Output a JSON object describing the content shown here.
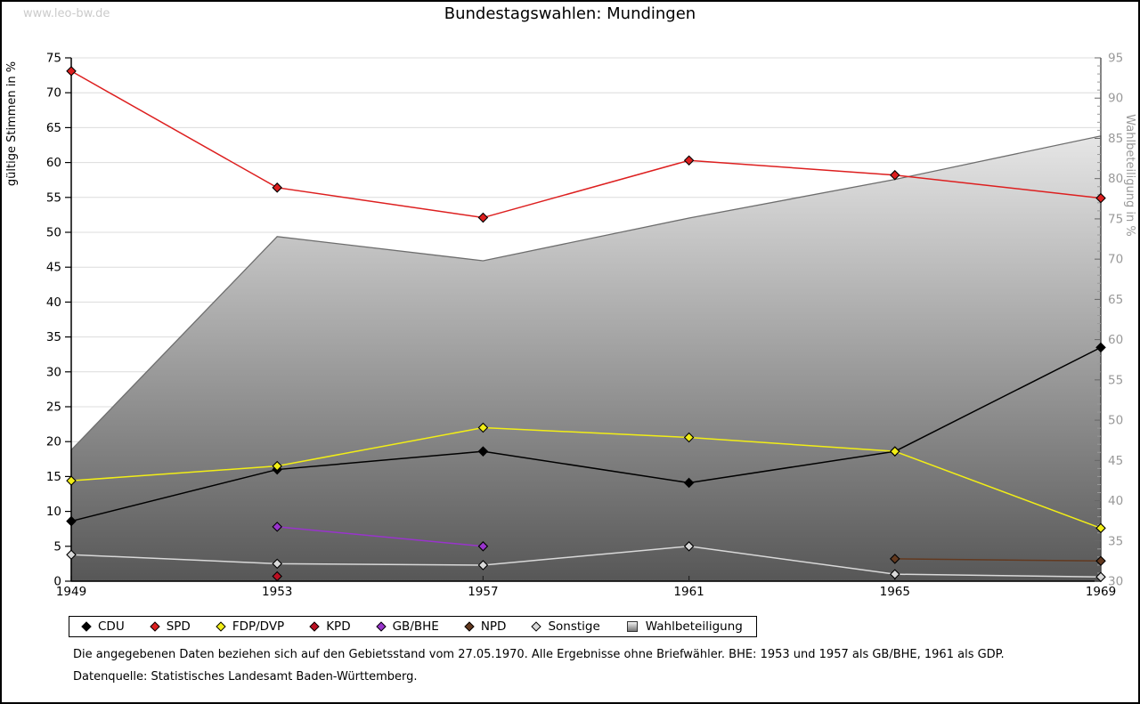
{
  "watermark": "www.leo-bw.de",
  "title": "Bundestagswahlen: Mundingen",
  "footnotes": {
    "line1": "Die angegebenen Daten beziehen sich auf den Gebietsstand vom 27.05.1970. Alle Ergebnisse ohne Briefwähler. BHE: 1953 und 1957 als GB/BHE, 1961 als GDP.",
    "line2": "Datenquelle: Statistisches Landesamt Baden-Württemberg."
  },
  "chart_data": {
    "type": "line",
    "x": [
      1949,
      1953,
      1957,
      1961,
      1965,
      1969
    ],
    "left_axis": {
      "label": "gültige Stimmen in %",
      "min": 0,
      "max": 75,
      "step": 5
    },
    "right_axis": {
      "label": "Wahlbeteiligung in %",
      "min": 30,
      "max": 95,
      "step": 5,
      "minor_step": 1
    },
    "grid": true,
    "legend_position": "bottom",
    "series": [
      {
        "name": "CDU",
        "axis": "left",
        "color": "#000000",
        "marker": "diamond",
        "values": [
          8.6,
          16.0,
          18.6,
          14.1,
          18.6,
          33.5
        ]
      },
      {
        "name": "SPD",
        "axis": "left",
        "color": "#dd1f1f",
        "marker": "diamond",
        "values": [
          73.1,
          56.4,
          52.1,
          60.3,
          58.2,
          54.9
        ]
      },
      {
        "name": "FDP/DVP",
        "axis": "left",
        "color": "#f2ee16",
        "marker": "diamond",
        "values": [
          14.4,
          16.5,
          22.0,
          20.6,
          18.6,
          7.6
        ]
      },
      {
        "name": "KPD",
        "axis": "left",
        "color": "#bb1022",
        "marker": "diamond",
        "values": [
          null,
          0.7,
          null,
          null,
          null,
          null
        ]
      },
      {
        "name": "GB/BHE",
        "axis": "left",
        "color": "#9934cc",
        "marker": "diamond",
        "values": [
          null,
          7.8,
          5.0,
          null,
          null,
          null
        ]
      },
      {
        "name": "NPD",
        "axis": "left",
        "color": "#63391f",
        "marker": "diamond",
        "values": [
          null,
          null,
          null,
          null,
          3.2,
          2.9
        ]
      },
      {
        "name": "Sonstige",
        "axis": "left",
        "color": "#d9d9d9",
        "marker": "diamond",
        "values": [
          3.8,
          2.5,
          2.3,
          5.0,
          1.0,
          0.6
        ]
      }
    ],
    "area_series": {
      "name": "Wahlbeteiligung",
      "axis": "right",
      "marker": "square",
      "values": [
        46.3,
        72.8,
        69.8,
        75.1,
        79.9,
        85.3
      ],
      "fill_top": "#ffffff",
      "fill_bottom": "#575757",
      "stroke": "#6e6e6e"
    }
  }
}
